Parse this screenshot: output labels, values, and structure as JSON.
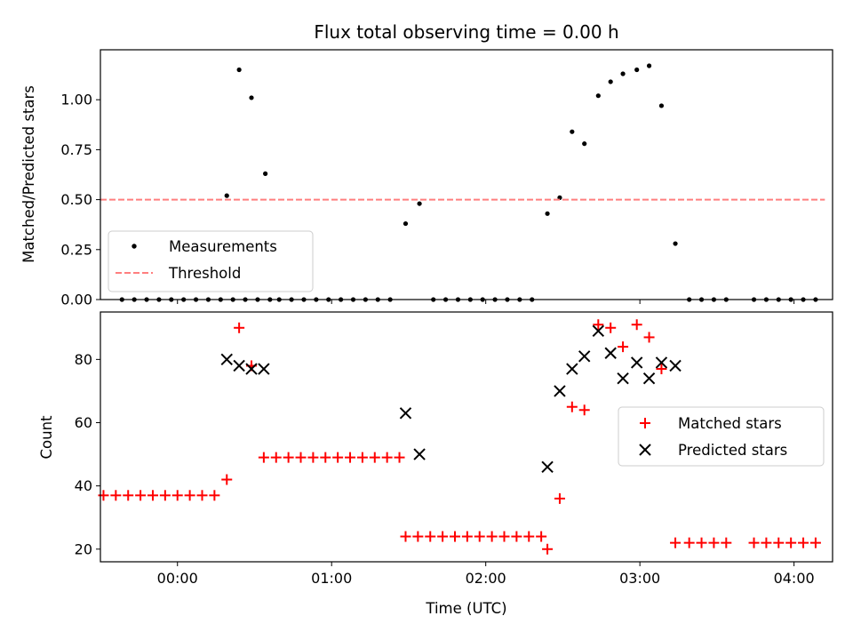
{
  "chart_data": {
    "title": "Flux total observing time = 0.00 h",
    "xlabel": "Time (UTC)",
    "x_ticks": [
      "00:00",
      "01:00",
      "02:00",
      "03:00",
      "04:00"
    ],
    "x_tick_values_h": [
      0,
      1,
      2,
      3,
      4
    ],
    "xlim_h": [
      -0.5,
      4.25
    ],
    "panels": [
      {
        "type": "scatter",
        "ylabel": "Matched/Predicted stars",
        "ylim": [
          0,
          1.25
        ],
        "y_ticks": [
          "0.00",
          "0.25",
          "0.50",
          "0.75",
          "1.00"
        ],
        "y_tick_values": [
          0,
          0.25,
          0.5,
          0.75,
          1.0
        ],
        "legend_position": "lower-left",
        "series": [
          {
            "name": "Measurements",
            "marker": "dot",
            "color": "#000000",
            "x": [
              -0.36,
              -0.28,
              -0.2,
              -0.12,
              -0.04,
              0.04,
              0.12,
              0.2,
              0.28,
              0.36,
              0.44,
              0.52,
              0.6,
              0.32,
              0.4,
              0.48,
              0.57,
              0.66,
              0.74,
              0.82,
              0.9,
              0.98,
              1.06,
              1.14,
              1.22,
              1.3,
              1.38,
              1.48,
              1.57,
              1.66,
              1.74,
              1.82,
              1.9,
              1.98,
              2.06,
              2.14,
              2.22,
              2.3,
              2.4,
              2.48,
              2.56,
              2.64,
              2.73,
              2.81,
              2.89,
              2.98,
              3.06,
              3.14,
              3.23,
              3.32,
              3.4,
              3.48,
              3.56,
              3.74,
              3.82,
              3.9,
              3.98,
              4.06,
              4.14
            ],
            "y": [
              0,
              0,
              0,
              0,
              0,
              0,
              0,
              0,
              0,
              0,
              0,
              0,
              0,
              0.52,
              1.15,
              1.01,
              0.63,
              0,
              0,
              0,
              0,
              0,
              0,
              0,
              0,
              0,
              0,
              0.38,
              0.48,
              0,
              0,
              0,
              0,
              0,
              0,
              0,
              0,
              0,
              0.43,
              0.51,
              0.84,
              0.78,
              1.02,
              1.09,
              1.13,
              1.15,
              1.17,
              0.97,
              0.28,
              0,
              0,
              0,
              0,
              0,
              0,
              0,
              0,
              0,
              0
            ]
          },
          {
            "name": "Threshold",
            "style": "dashed",
            "color": "#ff7f7f",
            "x": [
              -0.5,
              4.2
            ],
            "y": [
              0.5,
              0.5
            ]
          }
        ]
      },
      {
        "type": "scatter",
        "ylabel": "Count",
        "ylim": [
          16,
          95
        ],
        "y_ticks": [
          "20",
          "40",
          "60",
          "80"
        ],
        "y_tick_values": [
          20,
          40,
          60,
          80
        ],
        "legend_position": "center-right",
        "series": [
          {
            "name": "Matched stars",
            "marker": "plus",
            "color": "#ff0000",
            "x": [
              -0.48,
              -0.4,
              -0.32,
              -0.24,
              -0.16,
              -0.08,
              0.0,
              0.08,
              0.16,
              0.24,
              0.32,
              0.4,
              0.48,
              0.56,
              0.64,
              0.72,
              0.8,
              0.88,
              0.96,
              1.04,
              1.12,
              1.2,
              1.28,
              1.36,
              1.44,
              1.48,
              1.56,
              1.64,
              1.72,
              1.8,
              1.88,
              1.96,
              2.04,
              2.12,
              2.2,
              2.28,
              2.36,
              2.4,
              2.48,
              2.56,
              2.64,
              2.73,
              2.81,
              2.89,
              2.98,
              3.06,
              3.14,
              3.23,
              3.32,
              3.4,
              3.48,
              3.56,
              3.74,
              3.82,
              3.9,
              3.98,
              4.06,
              4.14
            ],
            "y": [
              37,
              37,
              37,
              37,
              37,
              37,
              37,
              37,
              37,
              37,
              42,
              90,
              78,
              49,
              49,
              49,
              49,
              49,
              49,
              49,
              49,
              49,
              49,
              49,
              49,
              24,
              24,
              24,
              24,
              24,
              24,
              24,
              24,
              24,
              24,
              24,
              24,
              20,
              36,
              65,
              64,
              91,
              90,
              84,
              91,
              87,
              77,
              22,
              22,
              22,
              22,
              22,
              22,
              22,
              22,
              22,
              22,
              22
            ]
          },
          {
            "name": "Predicted stars",
            "marker": "x",
            "color": "#000000",
            "x": [
              0.32,
              0.4,
              0.48,
              0.56,
              1.48,
              1.57,
              2.4,
              2.48,
              2.56,
              2.64,
              2.73,
              2.81,
              2.89,
              2.98,
              3.06,
              3.14,
              3.23
            ],
            "y": [
              80,
              78,
              77,
              77,
              63,
              50,
              46,
              70,
              77,
              81,
              89,
              82,
              74,
              79,
              74,
              79,
              78
            ]
          }
        ]
      }
    ]
  }
}
